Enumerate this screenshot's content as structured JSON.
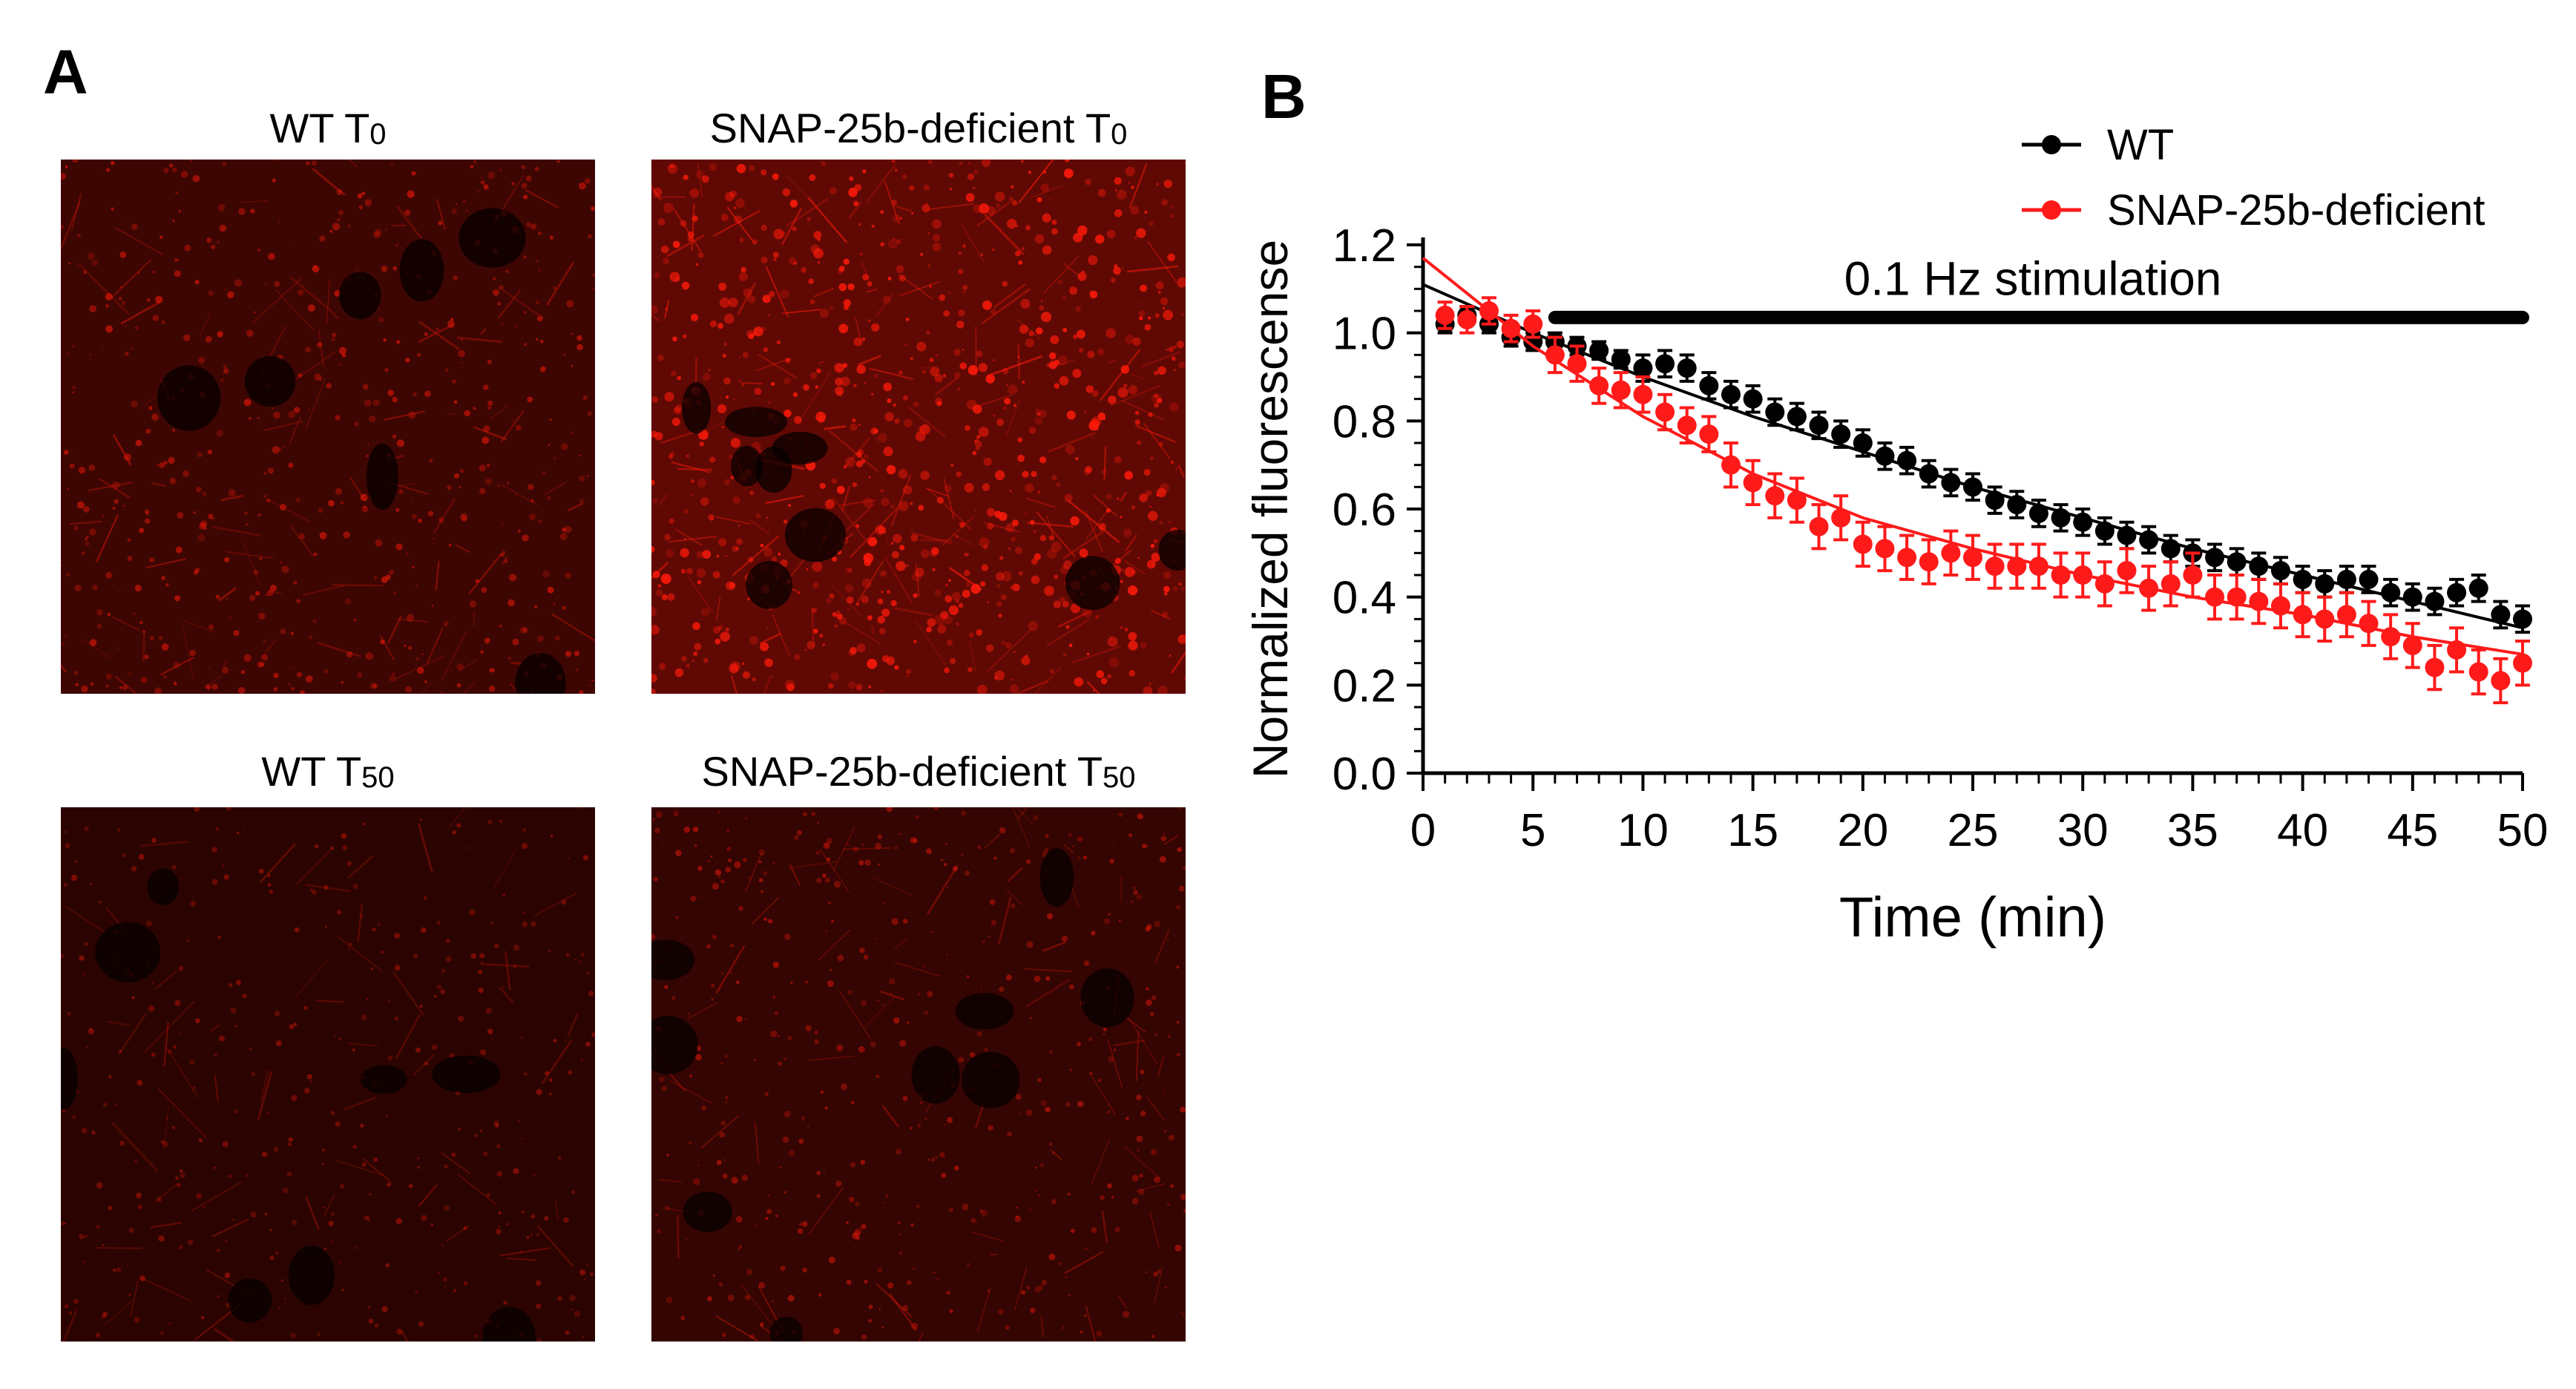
{
  "panel_a": {
    "letter": "A",
    "images": [
      {
        "label": "WT T",
        "sub": "0",
        "brightness": 0.55,
        "seed": 11
      },
      {
        "label": "SNAP-25b-deficient T",
        "sub": "0",
        "brightness": 1.0,
        "seed": 23
      },
      {
        "label": "WT T",
        "sub": "50",
        "brightness": 0.3,
        "seed": 37
      },
      {
        "label": "SNAP-25b-deficient T",
        "sub": "50",
        "brightness": 0.42,
        "seed": 51
      }
    ],
    "colors": {
      "signal": "#ff1a0a",
      "background": "#070000"
    }
  },
  "panel_b": {
    "letter": "B"
  },
  "chart_data": {
    "type": "scatter",
    "xlabel": "Time (min)",
    "ylabel": "Normalized fluorescense",
    "xlim": [
      0,
      50
    ],
    "ylim": [
      0,
      1.2
    ],
    "xticks": [
      "0",
      "5",
      "10",
      "15",
      "20",
      "25",
      "30",
      "35",
      "40",
      "45",
      "50"
    ],
    "yticks": [
      "0.0",
      "0.2",
      "0.4",
      "0.6",
      "0.8",
      "1.0",
      "1.2"
    ],
    "annotation": "0.1 Hz stimulation",
    "stimulation_range": [
      6,
      50
    ],
    "legend_position": "top-right",
    "series": [
      {
        "name": "WT",
        "color": "#000000",
        "x": [
          1,
          2,
          3,
          4,
          5,
          6,
          7,
          8,
          9,
          10,
          11,
          12,
          13,
          14,
          15,
          16,
          17,
          18,
          19,
          20,
          21,
          22,
          23,
          24,
          25,
          26,
          27,
          28,
          29,
          30,
          31,
          32,
          33,
          34,
          35,
          36,
          37,
          38,
          39,
          40,
          41,
          42,
          43,
          44,
          45,
          46,
          47,
          48,
          49,
          50
        ],
        "y": [
          1.02,
          1.04,
          1.02,
          0.99,
          0.98,
          0.98,
          0.97,
          0.96,
          0.94,
          0.92,
          0.93,
          0.92,
          0.88,
          0.86,
          0.85,
          0.82,
          0.81,
          0.79,
          0.77,
          0.75,
          0.72,
          0.71,
          0.68,
          0.66,
          0.65,
          0.62,
          0.61,
          0.59,
          0.58,
          0.57,
          0.55,
          0.54,
          0.53,
          0.51,
          0.5,
          0.49,
          0.48,
          0.47,
          0.46,
          0.44,
          0.43,
          0.44,
          0.44,
          0.41,
          0.4,
          0.39,
          0.41,
          0.42,
          0.36,
          0.35
        ],
        "err": [
          0.02,
          0.02,
          0.02,
          0.02,
          0.02,
          0.02,
          0.02,
          0.02,
          0.02,
          0.03,
          0.03,
          0.03,
          0.03,
          0.03,
          0.03,
          0.03,
          0.03,
          0.03,
          0.03,
          0.03,
          0.03,
          0.03,
          0.03,
          0.03,
          0.03,
          0.03,
          0.03,
          0.03,
          0.03,
          0.03,
          0.03,
          0.03,
          0.03,
          0.03,
          0.03,
          0.03,
          0.03,
          0.03,
          0.03,
          0.03,
          0.03,
          0.03,
          0.03,
          0.03,
          0.03,
          0.03,
          0.03,
          0.03,
          0.03,
          0.03
        ],
        "fit": [
          [
            0,
            1.11
          ],
          [
            5,
            1.0
          ],
          [
            10,
            0.9
          ],
          [
            15,
            0.81
          ],
          [
            20,
            0.73
          ],
          [
            25,
            0.65
          ],
          [
            30,
            0.58
          ],
          [
            35,
            0.51
          ],
          [
            40,
            0.45
          ],
          [
            45,
            0.39
          ],
          [
            50,
            0.33
          ]
        ]
      },
      {
        "name": "SNAP-25b-deficient",
        "color": "#ff1a1a",
        "x": [
          1,
          2,
          3,
          4,
          5,
          6,
          7,
          8,
          9,
          10,
          11,
          12,
          13,
          14,
          15,
          16,
          17,
          18,
          19,
          20,
          21,
          22,
          23,
          24,
          25,
          26,
          27,
          28,
          29,
          30,
          31,
          32,
          33,
          34,
          35,
          36,
          37,
          38,
          39,
          40,
          41,
          42,
          43,
          44,
          45,
          46,
          47,
          48,
          49,
          50
        ],
        "y": [
          1.04,
          1.03,
          1.05,
          1.01,
          1.02,
          0.95,
          0.93,
          0.88,
          0.87,
          0.86,
          0.82,
          0.79,
          0.77,
          0.7,
          0.66,
          0.63,
          0.62,
          0.56,
          0.58,
          0.52,
          0.51,
          0.49,
          0.48,
          0.5,
          0.49,
          0.47,
          0.47,
          0.47,
          0.45,
          0.45,
          0.43,
          0.46,
          0.42,
          0.43,
          0.45,
          0.4,
          0.4,
          0.39,
          0.38,
          0.36,
          0.35,
          0.36,
          0.34,
          0.31,
          0.29,
          0.24,
          0.28,
          0.23,
          0.21,
          0.25
        ],
        "err": [
          0.03,
          0.03,
          0.03,
          0.03,
          0.03,
          0.04,
          0.04,
          0.04,
          0.04,
          0.04,
          0.04,
          0.04,
          0.04,
          0.05,
          0.05,
          0.05,
          0.05,
          0.05,
          0.05,
          0.05,
          0.05,
          0.05,
          0.05,
          0.05,
          0.05,
          0.05,
          0.05,
          0.05,
          0.05,
          0.05,
          0.05,
          0.05,
          0.05,
          0.05,
          0.05,
          0.05,
          0.05,
          0.05,
          0.05,
          0.05,
          0.05,
          0.05,
          0.05,
          0.05,
          0.05,
          0.05,
          0.05,
          0.05,
          0.05,
          0.05
        ],
        "fit": [
          [
            0,
            1.17
          ],
          [
            5,
            0.97
          ],
          [
            10,
            0.81
          ],
          [
            15,
            0.68
          ],
          [
            20,
            0.58
          ],
          [
            25,
            0.51
          ],
          [
            30,
            0.45
          ],
          [
            35,
            0.4
          ],
          [
            40,
            0.36
          ],
          [
            45,
            0.31
          ],
          [
            50,
            0.27
          ]
        ]
      }
    ]
  }
}
